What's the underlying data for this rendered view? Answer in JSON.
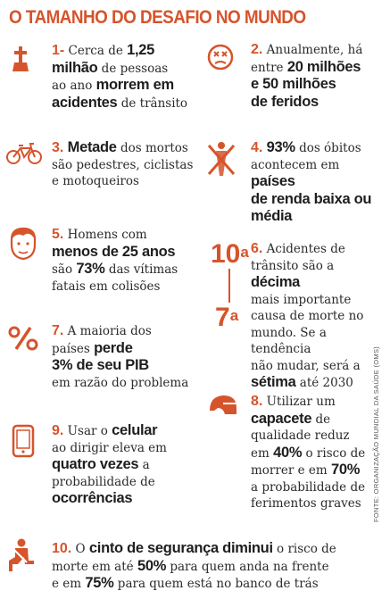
{
  "title": "O TAMANHO DO DESAFIO NO MUNDO",
  "items": [
    {
      "num": "1-",
      "t1": "Cerca de",
      "b1": "1,25",
      "b2": "milhão",
      "t2": "de pessoas",
      "t3": "ao ano",
      "b3": "morrem em",
      "b4": "acidentes",
      "t4": "de trânsito"
    },
    {
      "num": "2.",
      "t1": "Anualmente, há",
      "t2": "entre",
      "b1": "20 milhões",
      "b2": "e 50 milhões",
      "b3": "de feridos"
    },
    {
      "num": "3.",
      "b1": "Metade",
      "t1": "dos mortos",
      "t2": "são pedestres, ciclistas",
      "t3": "e motoqueiros"
    },
    {
      "num": "4.",
      "b1": "93%",
      "t1": "dos óbitos",
      "t2": "acontecem em",
      "b2": "países",
      "b3": "de renda baixa ou",
      "b4": "média"
    },
    {
      "num": "5.",
      "t1": "Homens com",
      "b1": "menos de 25 anos",
      "t2": "são",
      "b2": "73%",
      "t3": "das vítimas",
      "t4": "fatais em colisões"
    },
    {
      "num": "6.",
      "t1": "Acidentes de",
      "t2": "trânsito são a",
      "b1": "décima",
      "t3": "mais importante",
      "t4": "causa de morte no",
      "t5": "mundo. Se a tendência",
      "t6": "não mudar, será a",
      "b2": "sétima",
      "t7": "até 2030",
      "rank_top": "10",
      "rank_top_sup": "a",
      "rank_bottom": "7",
      "rank_bottom_sup": "a"
    },
    {
      "num": "7.",
      "t1": "A maioria dos",
      "t2": "países",
      "b1": "perde",
      "b2": "3% de seu PIB",
      "t3": "em razão do problema"
    },
    {
      "num": "8.",
      "t1": "Utilizar um",
      "b1": "capacete",
      "t2": "de",
      "t3": "qualidade reduz",
      "t4": "em",
      "b2": "40%",
      "t5": "o risco de",
      "t6": "morrer e em",
      "b3": "70%",
      "t7": "a probabilidade de",
      "t8": "ferimentos graves"
    },
    {
      "num": "9.",
      "t1": "Usar o",
      "b1": "celular",
      "t2": "ao dirigir eleva em",
      "b2": "quatro vezes",
      "t3": "a",
      "t4": "probabilidade de",
      "b3": "ocorrências"
    },
    {
      "num": "10.",
      "t1": "O",
      "b1": "cinto de segurança diminui",
      "t2": "o risco de",
      "t3": "morte em até",
      "b2": "50%",
      "t4": "para quem anda na frente",
      "t5": "e em",
      "b3": "75%",
      "t6": "para quem está no banco de trás"
    }
  ],
  "source": "FONTE: ORGANIZAÇÃO MUNDIAL DA SAÚDE (OMS)",
  "icons": [
    "grave-cross-icon",
    "sad-face-icon",
    "bicycle-icon",
    "crossed-out-figure-icon",
    "young-man-face-icon",
    "percent-icon",
    "helmet-icon",
    "cellphone-icon",
    "seatbelt-icon"
  ],
  "colors": {
    "accent": "#d6542b",
    "text": "#2b2b2b"
  }
}
